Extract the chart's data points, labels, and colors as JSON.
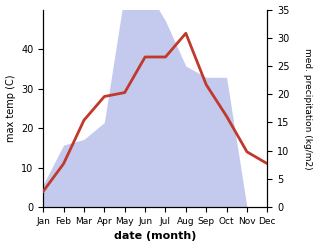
{
  "months": [
    "Jan",
    "Feb",
    "Mar",
    "Apr",
    "May",
    "Jun",
    "Jul",
    "Aug",
    "Sep",
    "Oct",
    "Nov",
    "Dec"
  ],
  "temperature": [
    4,
    11,
    22,
    28,
    29,
    38,
    38,
    44,
    31,
    23,
    14,
    11
  ],
  "precipitation": [
    4,
    11,
    12,
    15,
    38,
    39,
    33,
    25,
    23,
    23,
    0,
    0
  ],
  "temp_color": "#c0392b",
  "precip_color": "#aab4e8",
  "left_ylabel": "max temp (C)",
  "right_ylabel": "med. precipitation (kg/m2)",
  "xlabel": "date (month)",
  "left_ylim": [
    0,
    50
  ],
  "left_yticks": [
    0,
    10,
    20,
    30,
    40
  ],
  "right_ylim": [
    0,
    35
  ],
  "right_yticks": [
    0,
    5,
    10,
    15,
    20,
    25,
    30,
    35
  ],
  "background_color": "#ffffff",
  "temp_linewidth": 2.0
}
